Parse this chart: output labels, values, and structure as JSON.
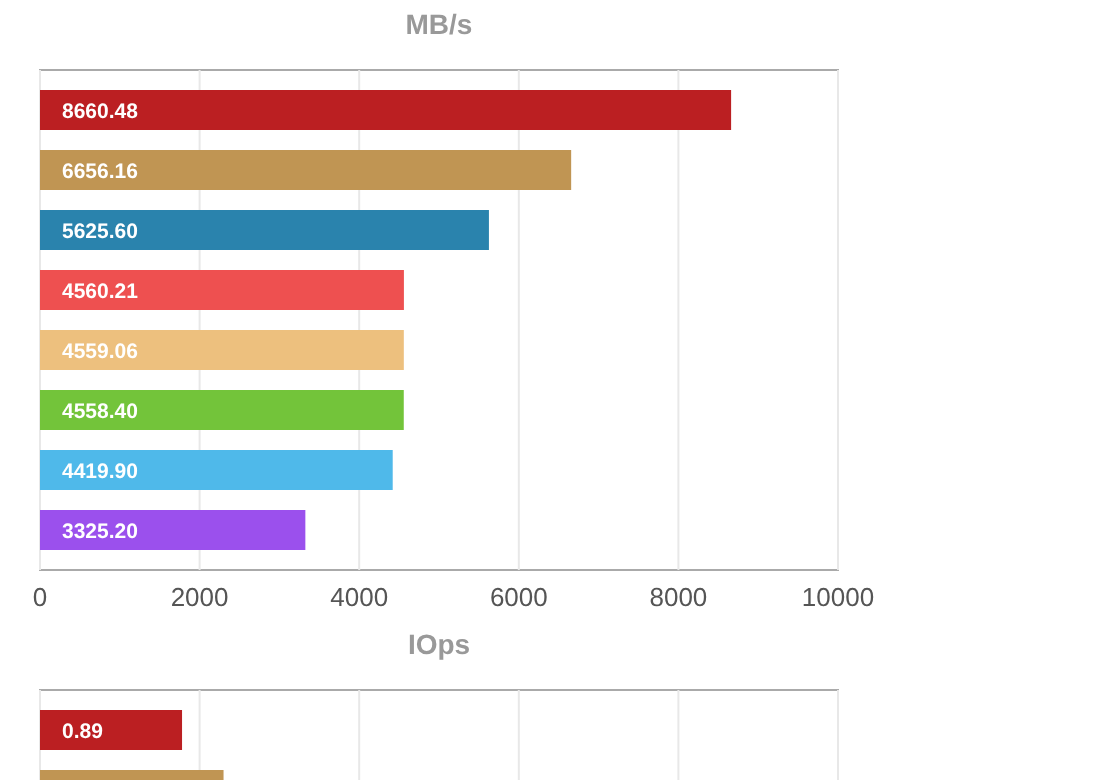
{
  "chart_data": [
    {
      "type": "bar",
      "title": "MB/s",
      "orientation": "horizontal",
      "categories": [
        null,
        null,
        null,
        null,
        null,
        null,
        null,
        null
      ],
      "values": [
        8660.48,
        6656.16,
        5625.6,
        4560.21,
        4559.06,
        4558.4,
        4419.9,
        3325.2
      ],
      "colors": [
        "#bb1f22",
        "#c09553",
        "#2a83ad",
        "#ee5050",
        "#edc07e",
        "#73c43a",
        "#4fb9ea",
        "#9b50ed"
      ],
      "value_labels": [
        "8660.48",
        "6656.16",
        "5625.60",
        "4560.21",
        "4559.06",
        "4558.40",
        "4419.90",
        "3325.20"
      ],
      "xlim": [
        0,
        10000
      ],
      "xticks": [
        0,
        2000,
        4000,
        6000,
        8000,
        10000
      ],
      "grid": "x"
    },
    {
      "type": "bar",
      "title": "IOps",
      "orientation": "horizontal",
      "categories": [
        null,
        null
      ],
      "values": [
        0.89,
        1.15
      ],
      "value_labels": [
        "0.89",
        null
      ],
      "colors": [
        "#bb1f22",
        "#c09553"
      ],
      "xlim": [
        0,
        5
      ],
      "xticks": [
        {
          "value": 0,
          "label": null
        },
        {
          "value": 1,
          "label": null
        },
        {
          "value": 2,
          "label": null
        },
        {
          "value": 3,
          "label": null
        },
        {
          "value": 4,
          "label": null
        },
        {
          "value": 5,
          "label": null
        }
      ],
      "grid": "x"
    }
  ]
}
